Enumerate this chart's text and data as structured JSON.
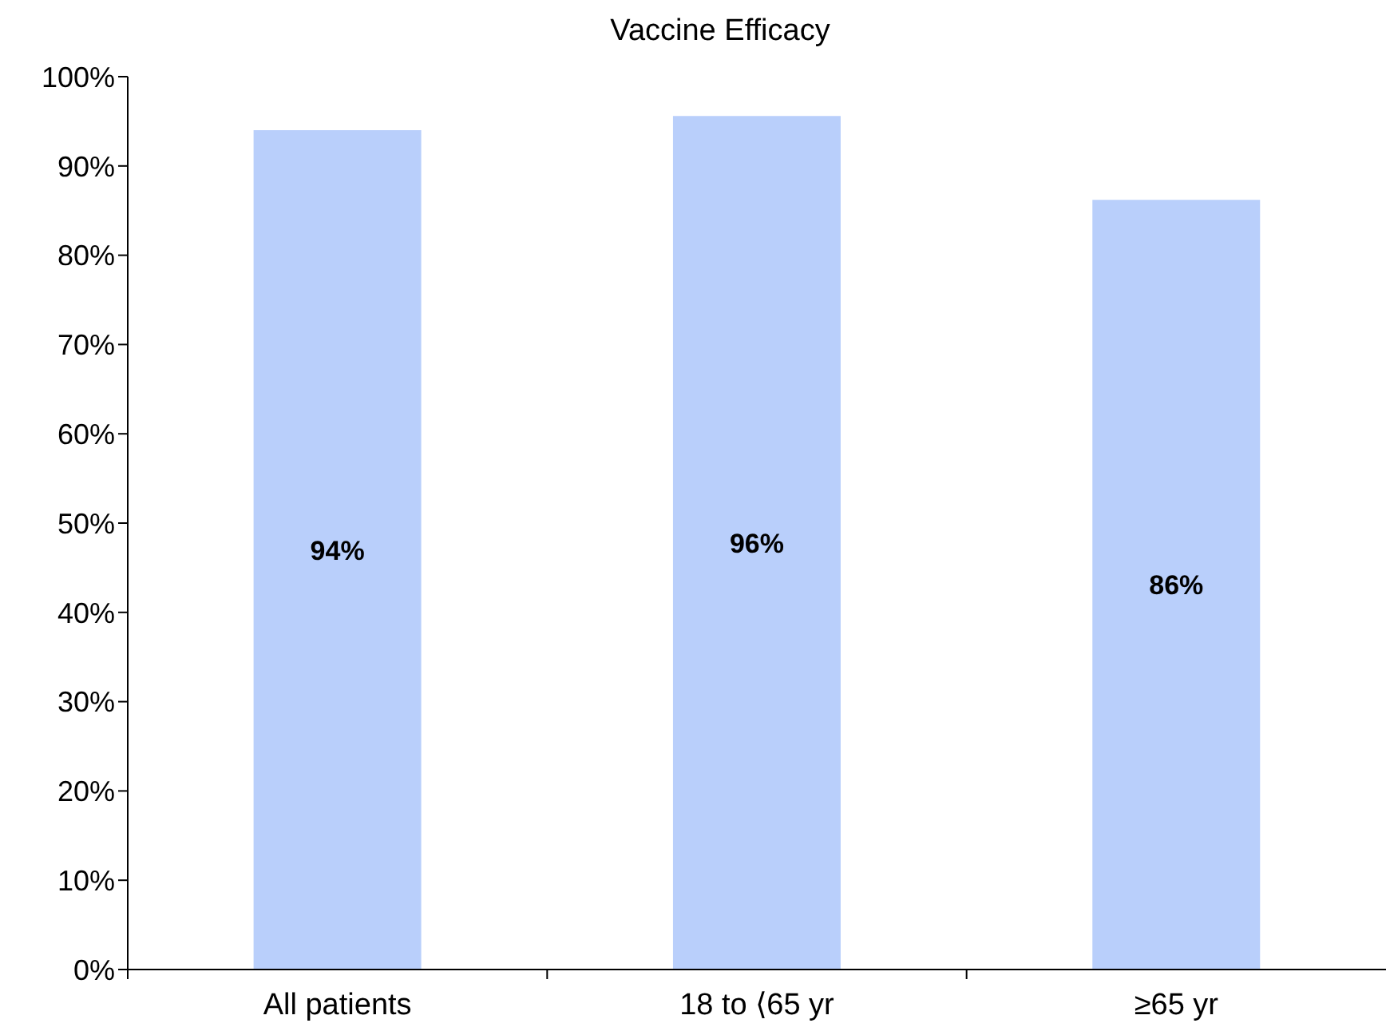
{
  "chart_data": {
    "type": "bar",
    "title": "Vaccine Efficacy",
    "categories": [
      "All patients",
      "18 to ⟨65 yr",
      "≥65 yr"
    ],
    "values": [
      94,
      95.6,
      86.2
    ],
    "color": "#b9cffb",
    "value_labels": [
      "94%",
      "96%",
      "86%"
    ],
    "ylim": [
      0,
      100
    ],
    "yticks": [
      {
        "value": 0,
        "label": "0%"
      },
      {
        "value": 10,
        "label": "10%"
      },
      {
        "value": 20,
        "label": "20%"
      },
      {
        "value": 30,
        "label": "30%"
      },
      {
        "value": 40,
        "label": "40%"
      },
      {
        "value": 50,
        "label": "50%"
      },
      {
        "value": 60,
        "label": "60%"
      },
      {
        "value": 70,
        "label": "70%"
      },
      {
        "value": 80,
        "label": "80%"
      },
      {
        "value": 90,
        "label": "90%"
      },
      {
        "value": 100,
        "label": "100%"
      }
    ]
  }
}
